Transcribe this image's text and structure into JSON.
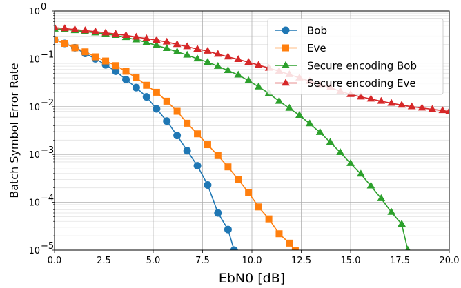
{
  "chart_data": {
    "type": "line",
    "xlabel": "EbN0 [dB]",
    "ylabel": "Batch Symbol Error Rate",
    "xlim": [
      0,
      20
    ],
    "ylim": [
      1e-05,
      1
    ],
    "yscale": "log",
    "grid": true,
    "legend_position": "top-right",
    "x_ticks": [
      "0.0",
      "2.5",
      "5.0",
      "7.5",
      "10.0",
      "12.5",
      "15.0",
      "17.5",
      "20.0"
    ],
    "y_ticks": [
      {
        "base": "10",
        "exp": "0"
      },
      {
        "base": "10",
        "exp": "−1"
      },
      {
        "base": "10",
        "exp": "−2"
      },
      {
        "base": "10",
        "exp": "−3"
      },
      {
        "base": "10",
        "exp": "−4"
      },
      {
        "base": "10",
        "exp": "−5"
      }
    ],
    "series": [
      {
        "name": "Bob",
        "color": "#1f77b4",
        "marker": "circle",
        "x": [
          0.0,
          0.52,
          1.03,
          1.55,
          2.07,
          2.59,
          3.1,
          3.62,
          4.14,
          4.66,
          5.17,
          5.69,
          6.21,
          6.72,
          7.24,
          7.76,
          8.28,
          8.79,
          9.1
        ],
        "y": [
          0.25,
          0.21,
          0.17,
          0.13,
          0.1,
          0.075,
          0.055,
          0.037,
          0.025,
          0.016,
          0.009,
          0.005,
          0.0025,
          0.0012,
          0.00058,
          0.00023,
          6e-05,
          2.7e-05,
          1e-05
        ]
      },
      {
        "name": "Eve",
        "color": "#ff7f0e",
        "marker": "square",
        "x": [
          0.0,
          0.52,
          1.03,
          1.55,
          2.07,
          2.59,
          3.1,
          3.62,
          4.14,
          4.66,
          5.17,
          5.69,
          6.21,
          6.72,
          7.24,
          7.76,
          8.28,
          8.79,
          9.31,
          9.83,
          10.34,
          10.86,
          11.38,
          11.9,
          12.2
        ],
        "y": [
          0.25,
          0.21,
          0.17,
          0.14,
          0.11,
          0.09,
          0.072,
          0.055,
          0.04,
          0.028,
          0.02,
          0.013,
          0.008,
          0.0045,
          0.0027,
          0.0016,
          0.00095,
          0.00055,
          0.0003,
          0.00016,
          8e-05,
          4.5e-05,
          2.2e-05,
          1.4e-05,
          1e-05
        ]
      },
      {
        "name": "Secure encoding Bob",
        "color": "#2ca02c",
        "marker": "triangle",
        "x": [
          0.0,
          0.52,
          1.03,
          1.55,
          2.07,
          2.59,
          3.1,
          3.62,
          4.14,
          4.66,
          5.17,
          5.69,
          6.21,
          6.72,
          7.24,
          7.76,
          8.28,
          8.79,
          9.31,
          9.83,
          10.34,
          10.86,
          11.38,
          11.9,
          12.41,
          12.93,
          13.45,
          13.97,
          14.48,
          15.0,
          15.52,
          16.03,
          16.55,
          17.07,
          17.59,
          17.9
        ],
        "y": [
          0.42,
          0.41,
          0.39,
          0.37,
          0.35,
          0.33,
          0.31,
          0.28,
          0.25,
          0.22,
          0.19,
          0.165,
          0.14,
          0.12,
          0.1,
          0.085,
          0.07,
          0.057,
          0.046,
          0.035,
          0.026,
          0.019,
          0.013,
          0.0093,
          0.0066,
          0.0044,
          0.0029,
          0.0018,
          0.0011,
          0.00065,
          0.00039,
          0.00022,
          0.00012,
          6.2e-05,
          3.5e-05,
          1e-05
        ]
      },
      {
        "name": "Secure encoding Eve",
        "color": "#d62728",
        "marker": "triangle",
        "x": [
          0.0,
          0.52,
          1.03,
          1.55,
          2.07,
          2.59,
          3.1,
          3.62,
          4.14,
          4.66,
          5.17,
          5.69,
          6.21,
          6.72,
          7.24,
          7.76,
          8.28,
          8.79,
          9.31,
          9.83,
          10.34,
          10.86,
          11.38,
          11.9,
          12.41,
          12.93,
          13.45,
          13.97,
          14.48,
          15.0,
          15.52,
          16.03,
          16.55,
          17.07,
          17.59,
          18.1,
          18.62,
          19.14,
          19.66,
          20.0
        ],
        "y": [
          0.45,
          0.43,
          0.41,
          0.39,
          0.37,
          0.35,
          0.33,
          0.31,
          0.285,
          0.265,
          0.245,
          0.225,
          0.2,
          0.18,
          0.16,
          0.145,
          0.125,
          0.11,
          0.097,
          0.085,
          0.074,
          0.064,
          0.055,
          0.047,
          0.04,
          0.034,
          0.029,
          0.025,
          0.021,
          0.018,
          0.016,
          0.0145,
          0.013,
          0.0118,
          0.0108,
          0.01,
          0.0094,
          0.0088,
          0.0083,
          0.0079
        ]
      }
    ]
  }
}
